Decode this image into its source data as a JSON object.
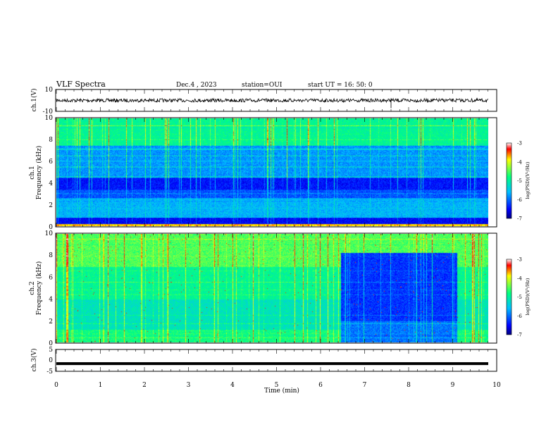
{
  "header": {
    "title": "VLF Spectra",
    "date": "Dec.4 , 2023",
    "station": "station=OUI",
    "start": "start  UT =   16: 50: 0"
  },
  "chart_data": [
    {
      "type": "line",
      "name": "ch1-waveform",
      "ylabel": "ch.1(V)",
      "ylim": [
        -10,
        10
      ],
      "yticks": [
        "10",
        "-10"
      ],
      "xlim": [
        0,
        10
      ],
      "signal_level_v": 0,
      "spike_at_min": 7.6
    },
    {
      "type": "heatmap",
      "name": "ch1-spectrogram",
      "ylabel": "Frequency (kHz)",
      "ylabel2": "ch.1",
      "ylim": [
        0,
        10
      ],
      "yticks": [
        "0",
        "2",
        "4",
        "6",
        "8",
        "10"
      ],
      "xlim": [
        0,
        10
      ],
      "data_end_min": 9.83,
      "colorbar": {
        "label": "log(PSD)(V²/Hz)",
        "range": [
          -7,
          -3
        ],
        "ticks": [
          "-3",
          "-4",
          "-5",
          "-6",
          "-7"
        ]
      }
    },
    {
      "type": "heatmap",
      "name": "ch2-spectrogram",
      "ylabel": "Frequency (kHz)",
      "ylabel2": "ch.2",
      "ylim": [
        0,
        10
      ],
      "yticks": [
        "0",
        "2",
        "4",
        "6",
        "8",
        "10"
      ],
      "xlim": [
        0,
        10
      ],
      "data_end_min": 9.83,
      "quiet_interval_min": [
        6.45,
        9.1
      ],
      "colorbar": {
        "label": "log(PSD)(V²/Hz)",
        "range": [
          -7,
          -3
        ],
        "ticks": [
          "-3",
          "-4",
          "-5",
          "-6",
          "-7"
        ]
      }
    },
    {
      "type": "line",
      "name": "ch3-waveform",
      "ylabel": "ch.3(V)",
      "ylim": [
        -5,
        5
      ],
      "yticks": [
        "5",
        "0",
        "-5"
      ],
      "xlim": [
        0,
        10
      ],
      "signal_level_v": -1.5
    }
  ],
  "xaxis": {
    "label": "Time  (min)",
    "ticks": [
      "0",
      "1",
      "2",
      "3",
      "4",
      "5",
      "6",
      "7",
      "8",
      "9",
      "10"
    ]
  },
  "colors": {
    "colormap": [
      "#000080",
      "#0000ff",
      "#00bfff",
      "#00ff80",
      "#ffff00",
      "#ff0000"
    ]
  }
}
